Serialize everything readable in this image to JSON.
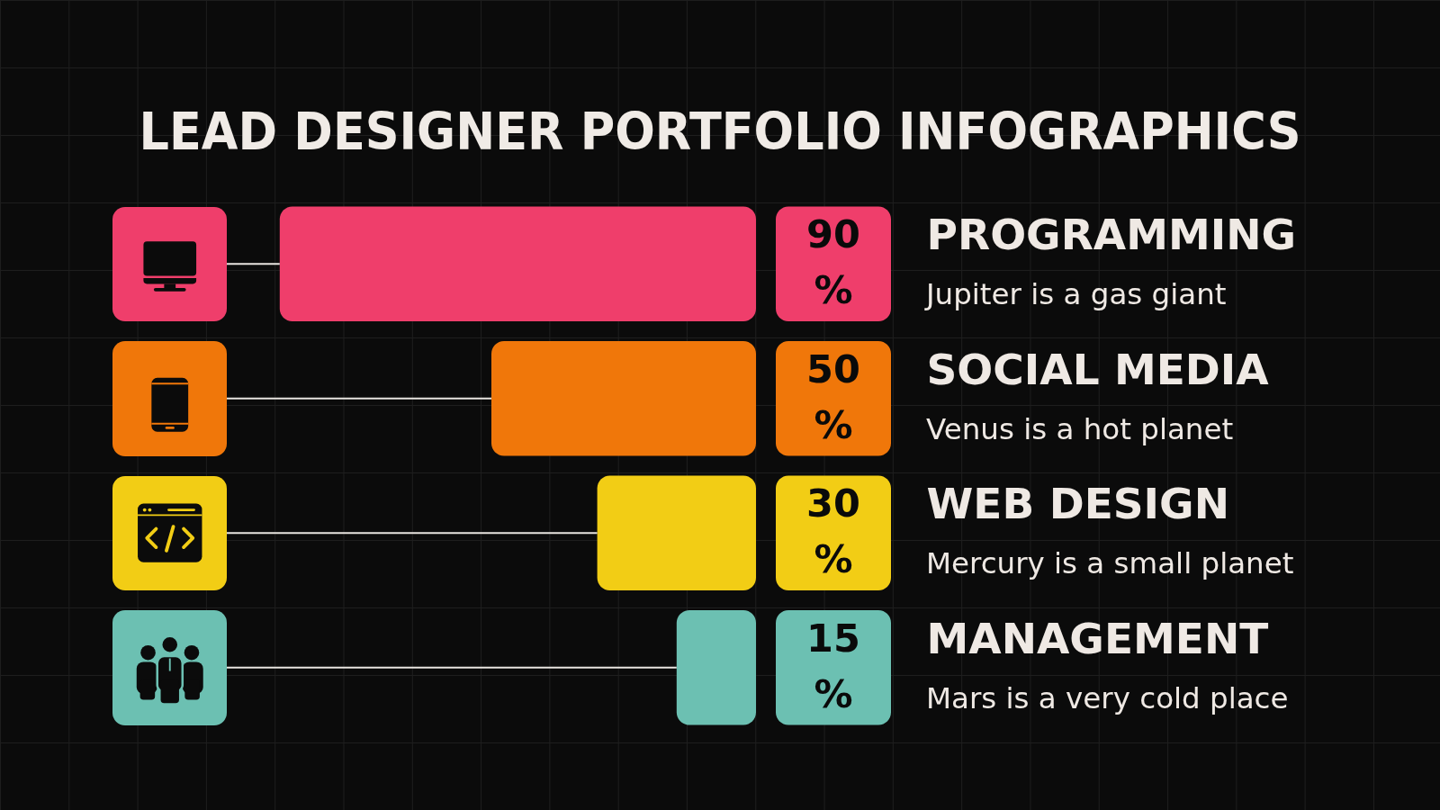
{
  "chart_data": {
    "type": "bar",
    "orientation": "horizontal",
    "stacked": true,
    "title": "LEAD DESIGNER PORTFOLIO INFOGRAPHICS",
    "categories": [
      "PROGRAMMING",
      "SOCIAL MEDIA",
      "WEB DESIGN",
      "MANAGEMENT"
    ],
    "series": [
      {
        "values": [
          90,
          50,
          30,
          15
        ],
        "colors": [
          "#ef3e6b",
          "#f0770a",
          "#f2cd15",
          "#6cc0b2"
        ],
        "value_labels": [
          "90\n%",
          "50\n%",
          "30\n%",
          "15\n%"
        ]
      },
      {
        "values": [
          10,
          50,
          70,
          85
        ],
        "color": "#e9e5e1"
      }
    ],
    "xlim": [
      100,
      0
    ],
    "tick_labels": "y",
    "annotations": [
      "Jupiter is a gas giant",
      "Venus is a hot planet",
      "Mercury is a small planet",
      "Mars is a very cold place"
    ]
  }
}
